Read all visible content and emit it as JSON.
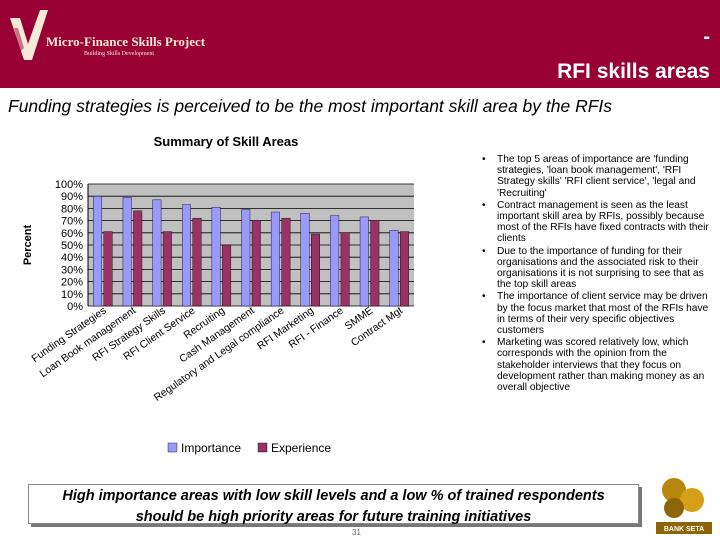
{
  "header": {
    "logo_title": "Micro-Finance Skills Project",
    "logo_subtitle": "Building Skills Development",
    "dash": "-",
    "title": "RFI skills areas"
  },
  "subtitle": "Funding strategies is perceived to be the most important skill area by the RFIs",
  "chart_data": {
    "type": "bar",
    "title": "Summary of Skill Areas",
    "ylabel": "Percent",
    "xlabel": "",
    "ylim": [
      0,
      100
    ],
    "yticks": [
      "0%",
      "10%",
      "20%",
      "30%",
      "40%",
      "50%",
      "60%",
      "70%",
      "80%",
      "90%",
      "100%"
    ],
    "grid": true,
    "legend_position": "bottom",
    "categories": [
      "Funding Strategies",
      "Loan Book management",
      "RFI Strategy Skills",
      "RFI Client Service",
      "Recruiting",
      "Cash Management",
      "Regulatory and Legal compliance",
      "RFI Marketing",
      "RFI - Finance",
      "SMME",
      "Contract Mgt"
    ],
    "series": [
      {
        "name": "Importance",
        "color": "#9999ff",
        "values": [
          90,
          89,
          87,
          83,
          81,
          79,
          77,
          76,
          74,
          73,
          62
        ]
      },
      {
        "name": "Experience",
        "color": "#993366",
        "values": [
          61,
          78,
          61,
          72,
          50,
          70,
          72,
          59,
          60,
          70,
          61
        ]
      }
    ]
  },
  "bullets": [
    "The top 5 areas of importance are 'funding strategies, 'loan book management', 'RFI Strategy skills' 'RFI client service', 'legal and 'Recruiting'",
    "Contract management is seen as the least important skill area by RFIs, possibly because most of the RFIs have fixed contracts with their clients",
    "Due to the importance of funding for their organisations and the associated risk to their organisations it is not surprising to see that as the top skill areas",
    "The importance of client service may be driven by the focus market that most of the RFIs have in terms of their very specific objectives customers",
    "Marketing was scored relatively low, which corresponds with the opinion from the stakeholder interviews that they focus on development rather than making money as an overall objective"
  ],
  "bottom_box": {
    "line1": "High importance areas with low skill levels and a low % of trained respondents",
    "line2": "should be high priority areas for future training initiatives"
  },
  "page_number": "31",
  "bank_logo": {
    "text": "BANK SETA",
    "color": "#b8860b"
  }
}
